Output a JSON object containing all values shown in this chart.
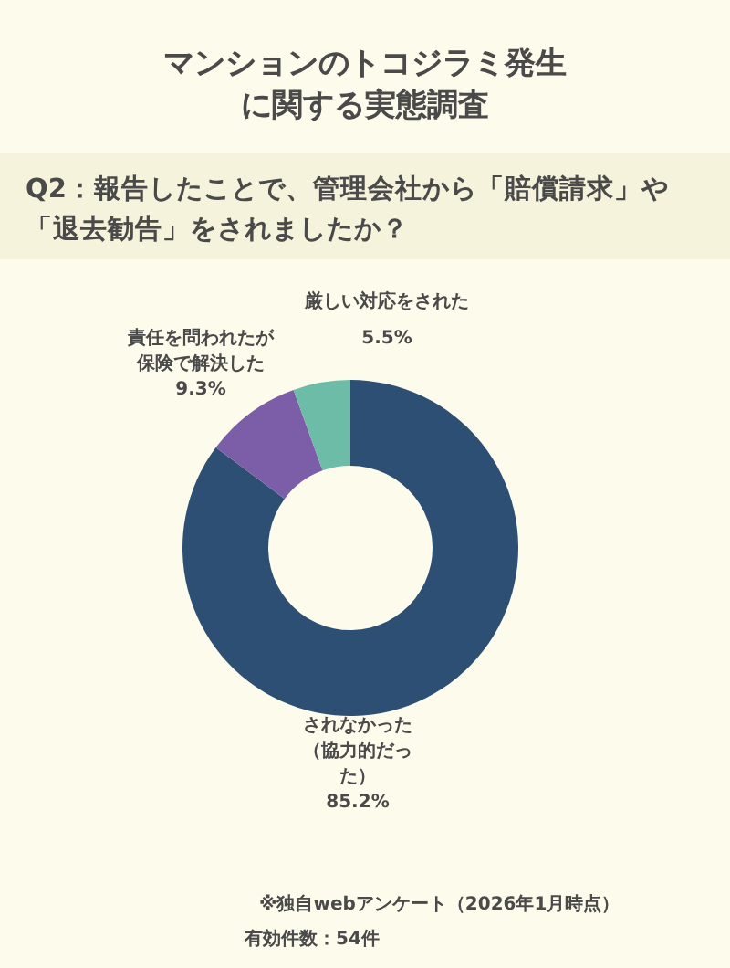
{
  "chart_data": {
    "type": "donut",
    "title": "マンションのトコジラミ発生に関する実態調査",
    "subtitle": "Q2：報告したことで、管理会社から「賠償請求」や「退去勧告」をされましたか？",
    "categories": [
      "されなかった（協力的だった）",
      "責任を問われたが保険で解決した",
      "厳しい対応をされた"
    ],
    "values": [
      85.2,
      9.3,
      5.5
    ],
    "colors": [
      "#2d4f73",
      "#7b5ea7",
      "#6dbca8"
    ],
    "value_labels": [
      "85.2%",
      "9.3%",
      "5.5%"
    ],
    "annotations": [
      "※独自webアンケート（2026年1月時点）",
      "有効件数：54件"
    ]
  }
}
